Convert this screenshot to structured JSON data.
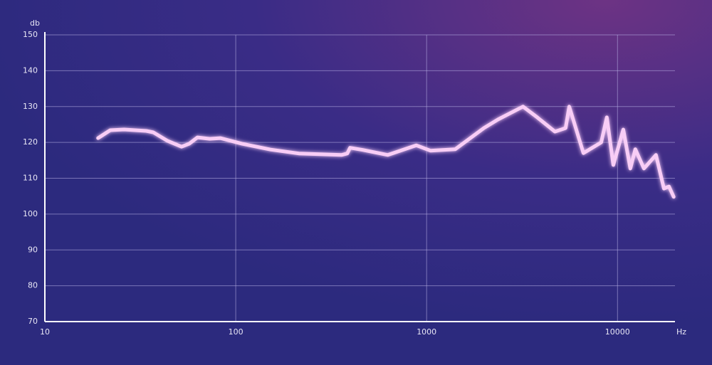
{
  "chart_data": {
    "type": "line",
    "y_label": "db",
    "x_label": "Hz",
    "x_log": true,
    "grid": true,
    "xlim": [
      10,
      20000
    ],
    "xticks": [
      10,
      100,
      1000,
      10000
    ],
    "ylim": [
      70,
      150
    ],
    "yticks": [
      70,
      80,
      90,
      100,
      110,
      120,
      130,
      140,
      150
    ],
    "x": [
      19,
      22,
      26,
      34,
      37,
      44,
      52,
      57,
      63,
      73,
      83,
      108,
      152,
      214,
      358,
      384,
      397,
      463,
      626,
      882,
      1047,
      1413,
      1995,
      2367,
      3197,
      3796,
      4700,
      5348,
      5585,
      6627,
      8218,
      8790,
      9506,
      10720,
      11670,
      12400,
      13750,
      15900,
      17500,
      18600,
      19700
    ],
    "series": [
      {
        "color": "#f8cdf6",
        "values": [
          121.2,
          123.4,
          123.6,
          123.2,
          122.8,
          120.4,
          118.8,
          119.6,
          121.4,
          121,
          121.2,
          119.6,
          118,
          116.9,
          116.5,
          116.9,
          118.5,
          117.9,
          116.5,
          119.2,
          117.7,
          118.1,
          124,
          126.4,
          130,
          127,
          123,
          124,
          130,
          117,
          120,
          127,
          113.7,
          123.6,
          112.7,
          118.1,
          112.7,
          116.5,
          107.1,
          107.7,
          104.8
        ]
      }
    ]
  }
}
